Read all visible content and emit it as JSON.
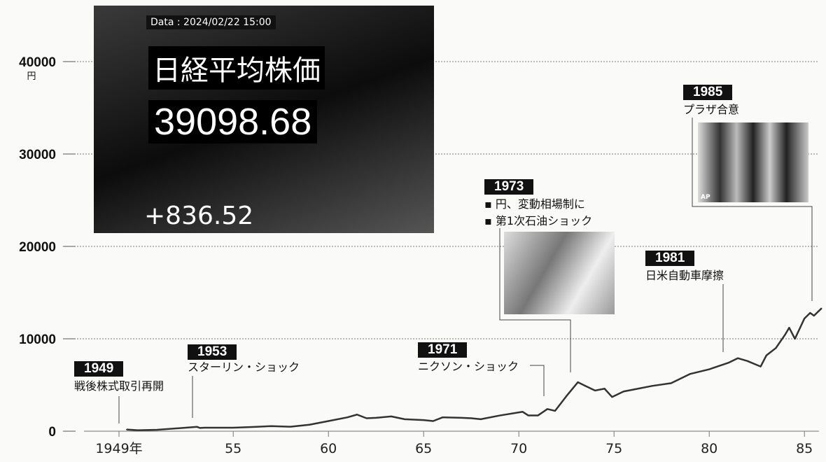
{
  "chart_data": {
    "type": "line",
    "ylim": [
      0,
      40000
    ],
    "xlim": [
      1946.5,
      1986
    ],
    "y_ticks": [
      0,
      10000,
      20000,
      30000,
      40000
    ],
    "y_unit": "円",
    "x_ticks": [
      {
        "v": 1949,
        "label": "1949年"
      },
      {
        "v": 1955,
        "label": "55"
      },
      {
        "v": 1960,
        "label": "60"
      },
      {
        "v": 1965,
        "label": "65"
      },
      {
        "v": 1970,
        "label": "70"
      },
      {
        "v": 1975,
        "label": "75"
      },
      {
        "v": 1980,
        "label": "80"
      },
      {
        "v": 1985,
        "label": "85"
      }
    ],
    "grid": true,
    "series": [
      {
        "x": [
          1949.4,
          1950,
          1951,
          1952,
          1953.1,
          1953.25,
          1953.5,
          1955,
          1956,
          1957,
          1958,
          1959,
          1960,
          1961,
          1961.5,
          1962,
          1962.5,
          1963.3,
          1964,
          1965,
          1965.5,
          1966,
          1967,
          1967.5,
          1968,
          1969,
          1970.2,
          1970.5,
          1971,
          1971.5,
          1971.9,
          1972.5,
          1973.1,
          1973.5,
          1974,
          1974.5,
          1974.9,
          1975.5,
          1976,
          1977,
          1978,
          1979,
          1980,
          1981,
          1981.5,
          1982,
          1982.7,
          1983,
          1983.5,
          1984,
          1984.2,
          1984.5,
          1985,
          1985.3,
          1985.5,
          1985.9
        ],
        "values": [
          176,
          100,
          150,
          300,
          470,
          350,
          380,
          380,
          450,
          550,
          480,
          700,
          1100,
          1500,
          1800,
          1400,
          1450,
          1600,
          1300,
          1200,
          1100,
          1500,
          1450,
          1400,
          1300,
          1700,
          2100,
          1700,
          1700,
          2400,
          2200,
          3800,
          5300,
          4900,
          4400,
          4600,
          3700,
          4300,
          4500,
          4900,
          5200,
          6200,
          6700,
          7400,
          7900,
          7600,
          7000,
          8200,
          9000,
          10500,
          11200,
          10000,
          12200,
          12800,
          12500,
          13300
        ]
      }
    ]
  },
  "events": [
    {
      "year": "1949",
      "text": [
        "戦後株式取引再開"
      ]
    },
    {
      "year": "1953",
      "text": [
        "スターリン・ショック"
      ]
    },
    {
      "year": "1971",
      "text": [
        "ニクソン・ショック"
      ]
    },
    {
      "year": "1973",
      "text": [
        "▪ 円、変動相場制に",
        "▪ 第1次石油ショック"
      ]
    },
    {
      "year": "1981",
      "text": [
        "日米自動車摩擦"
      ]
    },
    {
      "year": "1985",
      "text": [
        "プラザ合意"
      ]
    }
  ],
  "photo_main": {
    "date": "Data : 2024/02/22  15:00",
    "title": "日経平均株価",
    "value": "39098.68",
    "change": "+836.52"
  },
  "photo_plaza": {
    "credit": "AP"
  }
}
